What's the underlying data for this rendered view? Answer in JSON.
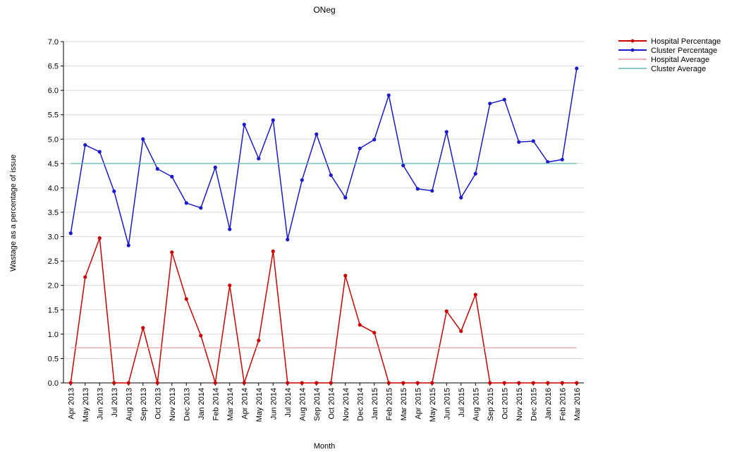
{
  "chart_data": {
    "type": "line",
    "title": "ONeg",
    "xlabel": "Month",
    "ylabel": "Wastage as a percentage of issue",
    "ylim": [
      0,
      7
    ],
    "yticks": [
      "0.0",
      "0.5",
      "1.0",
      "1.5",
      "2.0",
      "2.5",
      "3.0",
      "3.5",
      "4.0",
      "4.5",
      "5.0",
      "5.5",
      "6.0",
      "6.5",
      "7.0"
    ],
    "grid": true,
    "legend_position": "top-right",
    "categories": [
      "Apr 2013",
      "May 2013",
      "Jun 2013",
      "Jul 2013",
      "Aug 2013",
      "Sep 2013",
      "Oct 2013",
      "Nov 2013",
      "Dec 2013",
      "Jan 2014",
      "Feb 2014",
      "Mar 2014",
      "Apr 2014",
      "May 2014",
      "Jun 2014",
      "Jul 2014",
      "Aug 2014",
      "Sep 2014",
      "Oct 2014",
      "Nov 2014",
      "Dec 2014",
      "Jan 2015",
      "Feb 2015",
      "Mar 2015",
      "Apr 2015",
      "May 2015",
      "Jun 2015",
      "Jul 2015",
      "Aug 2015",
      "Sep 2015",
      "Oct 2015",
      "Nov 2015",
      "Dec 2015",
      "Jan 2016",
      "Feb 2016",
      "Mar 2016"
    ],
    "series": [
      {
        "name": "Hospital Percentage",
        "color": "#cc0000",
        "marker": true,
        "values": [
          0.0,
          2.17,
          2.97,
          0.0,
          0.0,
          1.13,
          0.0,
          2.68,
          1.72,
          0.97,
          0.0,
          2.0,
          0.0,
          0.87,
          2.7,
          0.0,
          0.0,
          0.0,
          0.0,
          2.2,
          1.19,
          1.03,
          0.0,
          0.0,
          0.0,
          0.0,
          1.47,
          1.06,
          1.81,
          0.0,
          0.0,
          0.0,
          0.0,
          0.0,
          0.0,
          0.0
        ]
      },
      {
        "name": "Cluster Percentage",
        "color": "#1a1acc",
        "marker": true,
        "values": [
          3.07,
          4.88,
          4.74,
          3.93,
          2.82,
          5.0,
          4.39,
          4.23,
          3.69,
          3.59,
          4.42,
          3.15,
          5.3,
          4.6,
          5.39,
          2.94,
          4.16,
          5.1,
          4.26,
          3.8,
          4.81,
          4.99,
          5.9,
          4.46,
          3.98,
          3.94,
          5.15,
          3.8,
          4.29,
          5.73,
          5.81,
          4.94,
          4.96,
          4.53,
          4.58,
          6.45
        ]
      },
      {
        "name": "Hospital Average",
        "color": "#e09a9a",
        "marker": false,
        "values": [
          0.72,
          0.72,
          0.72,
          0.72,
          0.72,
          0.72,
          0.72,
          0.72,
          0.72,
          0.72,
          0.72,
          0.72,
          0.72,
          0.72,
          0.72,
          0.72,
          0.72,
          0.72,
          0.72,
          0.72,
          0.72,
          0.72,
          0.72,
          0.72,
          0.72,
          0.72,
          0.72,
          0.72,
          0.72,
          0.72,
          0.72,
          0.72,
          0.72,
          0.72,
          0.72,
          0.72
        ]
      },
      {
        "name": "Cluster Average",
        "color": "#5fb8b0",
        "marker": false,
        "values": [
          4.5,
          4.5,
          4.5,
          4.5,
          4.5,
          4.5,
          4.5,
          4.5,
          4.5,
          4.5,
          4.5,
          4.5,
          4.5,
          4.5,
          4.5,
          4.5,
          4.5,
          4.5,
          4.5,
          4.5,
          4.5,
          4.5,
          4.5,
          4.5,
          4.5,
          4.5,
          4.5,
          4.5,
          4.5,
          4.5,
          4.5,
          4.5,
          4.5,
          4.5,
          4.5,
          4.5
        ]
      }
    ]
  }
}
